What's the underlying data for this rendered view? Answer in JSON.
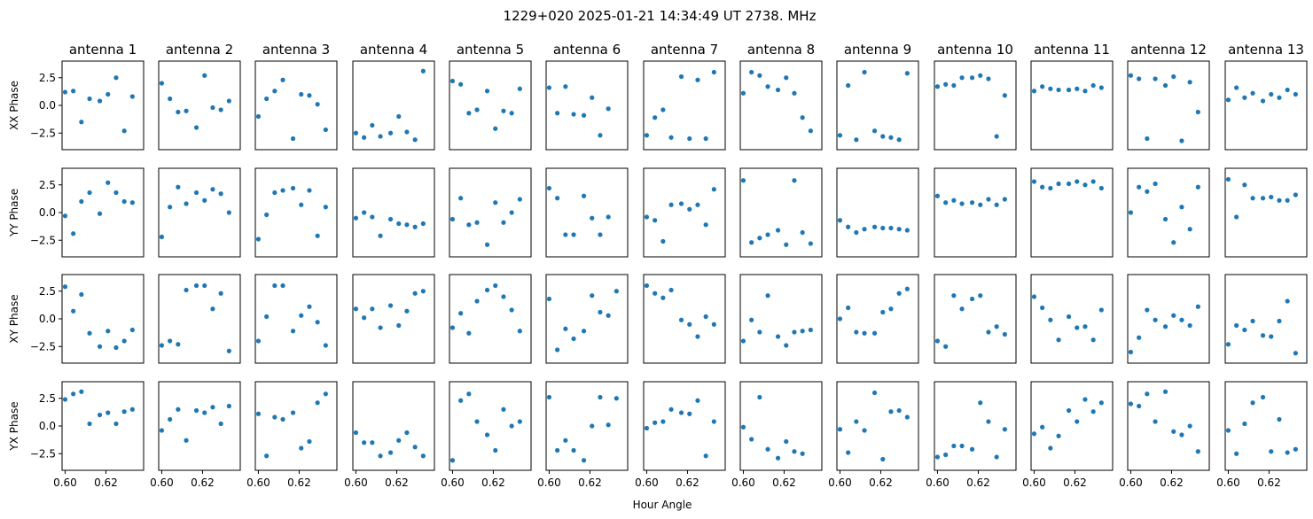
{
  "chart_data": {
    "type": "scatter",
    "title": "1229+020  2025-01-21 14:34:49 UT  2738. MHz",
    "xlabel": "Hour Angle",
    "columns": [
      "antenna 1",
      "antenna 2",
      "antenna 3",
      "antenna 4",
      "antenna 5",
      "antenna 6",
      "antenna 7",
      "antenna 8",
      "antenna 9",
      "antenna 10",
      "antenna 11",
      "antenna 12",
      "antenna 13"
    ],
    "rows": [
      "XX Phase",
      "YY Phase",
      "XY Phase",
      "YX Phase"
    ],
    "xlim": [
      0.5985,
      0.6385
    ],
    "ylim": [
      -4.0,
      4.0
    ],
    "xticks": [
      0.6,
      0.62
    ],
    "xtick_labels": [
      "0.60",
      "0.62"
    ],
    "yticks": [
      2.5,
      0.0,
      -2.5
    ],
    "ytick_labels": [
      "2.5",
      "0.0",
      "−2.5"
    ],
    "x": [
      0.6,
      0.604,
      0.608,
      0.612,
      0.617,
      0.621,
      0.625,
      0.629,
      0.633,
      0.637
    ],
    "values": [
      [
        [
          1.2,
          1.3,
          -1.5,
          0.6,
          0.4,
          1.0,
          2.5,
          -2.3,
          0.8,
          null
        ],
        [
          2.0,
          0.6,
          -0.6,
          -0.5,
          -2.0,
          2.7,
          -0.2,
          -0.4,
          0.4,
          null
        ],
        [
          -1.0,
          0.6,
          1.3,
          2.3,
          -3.0,
          1.0,
          0.9,
          0.1,
          -2.2,
          null
        ],
        [
          -2.5,
          -2.9,
          -1.8,
          -2.8,
          -2.5,
          -1.0,
          -2.4,
          -3.1,
          3.1,
          null
        ],
        [
          2.2,
          1.9,
          -0.7,
          -0.4,
          1.3,
          -2.1,
          -0.5,
          -0.7,
          1.5,
          null
        ],
        [
          1.6,
          -0.7,
          1.7,
          -0.8,
          -0.9,
          0.7,
          -2.7,
          -0.3,
          null,
          null
        ],
        [
          -2.7,
          -1.1,
          -0.4,
          -2.9,
          2.6,
          -3.0,
          2.3,
          -3.0,
          3.0,
          null
        ],
        [
          1.1,
          3.0,
          2.7,
          1.7,
          1.4,
          2.5,
          1.1,
          -1.1,
          -2.3,
          null
        ],
        [
          -2.7,
          1.8,
          -3.1,
          3.0,
          -2.3,
          -2.8,
          -2.9,
          -3.1,
          2.9,
          null
        ],
        [
          1.7,
          1.9,
          1.8,
          2.5,
          2.5,
          2.7,
          2.4,
          -2.8,
          0.9,
          null
        ],
        [
          1.3,
          1.7,
          1.5,
          1.4,
          1.4,
          1.5,
          1.3,
          1.8,
          1.6,
          null
        ],
        [
          2.7,
          2.4,
          -3.0,
          2.4,
          1.8,
          2.6,
          -3.2,
          2.1,
          -0.6,
          null
        ],
        [
          0.5,
          1.6,
          0.7,
          1.1,
          0.4,
          1.0,
          0.7,
          1.4,
          1.0,
          null
        ]
      ],
      [
        [
          -0.3,
          -1.9,
          1.0,
          1.8,
          -0.1,
          2.7,
          1.8,
          1.0,
          0.9,
          null
        ],
        [
          -2.2,
          0.5,
          2.3,
          0.8,
          1.8,
          1.1,
          2.1,
          1.7,
          0.0,
          null
        ],
        [
          -2.4,
          -0.2,
          1.8,
          2.0,
          2.2,
          0.7,
          2.0,
          -2.1,
          0.5,
          null
        ],
        [
          -0.5,
          0.0,
          -0.4,
          -2.1,
          -0.6,
          -1.0,
          -1.1,
          -1.3,
          -1.0,
          null
        ],
        [
          -0.6,
          1.3,
          -1.1,
          -0.9,
          -2.9,
          0.9,
          -0.9,
          0.0,
          1.2,
          null
        ],
        [
          2.2,
          1.3,
          -2.0,
          -2.0,
          1.5,
          -0.5,
          -2.0,
          -0.4,
          null,
          null
        ],
        [
          -0.4,
          -0.7,
          -2.6,
          0.7,
          0.8,
          0.3,
          0.7,
          -1.1,
          2.1,
          null
        ],
        [
          2.9,
          -2.7,
          -2.3,
          -2.0,
          -1.6,
          -2.9,
          2.9,
          -1.8,
          -2.8,
          null
        ],
        [
          -0.7,
          -1.3,
          -1.8,
          -1.5,
          -1.3,
          -1.4,
          -1.4,
          -1.5,
          -1.6,
          null
        ],
        [
          1.5,
          0.9,
          1.1,
          0.8,
          0.9,
          0.7,
          1.2,
          0.7,
          1.2,
          null
        ],
        [
          2.8,
          2.3,
          2.2,
          2.6,
          2.6,
          2.8,
          2.5,
          2.8,
          2.2,
          null
        ],
        [
          0.0,
          2.3,
          1.9,
          2.6,
          -0.6,
          -2.7,
          0.5,
          -1.5,
          2.3,
          null
        ],
        [
          3.0,
          -0.4,
          2.5,
          1.3,
          1.3,
          1.4,
          1.1,
          1.1,
          1.6,
          null
        ]
      ],
      [
        [
          2.9,
          0.7,
          2.2,
          -1.3,
          -2.5,
          -1.1,
          -2.6,
          -2.0,
          -1.0,
          null
        ],
        [
          -2.4,
          -2.0,
          -2.3,
          2.6,
          3.0,
          3.0,
          0.9,
          2.3,
          -2.9,
          null
        ],
        [
          -2.0,
          0.2,
          3.0,
          3.0,
          -1.1,
          0.3,
          1.1,
          -0.3,
          -2.4,
          null
        ],
        [
          0.9,
          0.1,
          0.9,
          -0.8,
          1.2,
          -0.6,
          0.7,
          2.3,
          2.5,
          null
        ],
        [
          -0.8,
          0.5,
          -1.3,
          1.6,
          2.6,
          3.0,
          2.0,
          0.8,
          -1.1,
          null
        ],
        [
          1.8,
          -2.8,
          -0.9,
          -1.8,
          -1.1,
          2.1,
          0.6,
          0.3,
          2.5,
          null
        ],
        [
          3.0,
          2.3,
          1.9,
          2.6,
          -0.1,
          -0.5,
          -1.6,
          0.2,
          -0.5,
          null
        ],
        [
          -2.0,
          -0.1,
          -1.2,
          2.1,
          -1.6,
          -2.4,
          -1.2,
          -1.1,
          -1.0,
          null
        ],
        [
          0.0,
          1.0,
          -1.2,
          -1.3,
          -1.3,
          0.6,
          0.9,
          2.3,
          2.7,
          null
        ],
        [
          -2.0,
          -2.5,
          2.1,
          0.9,
          1.8,
          2.1,
          -1.2,
          -0.7,
          -1.4,
          null
        ],
        [
          2.0,
          1.0,
          -0.1,
          -1.9,
          0.2,
          -0.8,
          -0.7,
          -1.9,
          0.8,
          null
        ],
        [
          -3.0,
          -1.7,
          0.8,
          -0.1,
          -0.7,
          0.3,
          -0.1,
          -0.6,
          1.1,
          null
        ],
        [
          -2.3,
          -0.6,
          -1.0,
          -0.2,
          -1.5,
          -1.6,
          -0.2,
          1.6,
          -3.1,
          null
        ]
      ],
      [
        [
          2.4,
          2.9,
          3.1,
          0.2,
          1.0,
          1.2,
          0.2,
          1.3,
          1.5,
          null
        ],
        [
          -0.4,
          0.6,
          1.5,
          -1.3,
          1.4,
          1.2,
          1.7,
          0.2,
          1.8,
          null
        ],
        [
          1.1,
          -2.7,
          0.8,
          0.6,
          1.2,
          -2.0,
          -1.4,
          2.1,
          2.9,
          null
        ],
        [
          -0.6,
          -1.5,
          -1.5,
          -2.7,
          -2.4,
          -1.3,
          -0.6,
          -1.9,
          -2.7,
          null
        ],
        [
          -3.1,
          2.3,
          2.9,
          0.4,
          -0.8,
          -2.2,
          1.5,
          0.0,
          0.4,
          null
        ],
        [
          2.6,
          -2.2,
          -1.3,
          -2.2,
          -3.1,
          0.0,
          2.6,
          0.1,
          2.5,
          null
        ],
        [
          -0.2,
          0.3,
          0.4,
          1.5,
          1.2,
          1.1,
          2.3,
          -2.7,
          0.4,
          null
        ],
        [
          -0.1,
          -1.2,
          2.6,
          -2.1,
          -2.9,
          -1.4,
          -2.3,
          -2.5,
          null,
          null
        ],
        [
          -0.3,
          -2.4,
          0.4,
          -0.4,
          3.0,
          -3.0,
          1.3,
          1.4,
          0.8,
          null
        ],
        [
          -2.8,
          -2.6,
          -1.8,
          -1.8,
          -2.1,
          2.1,
          0.4,
          -2.8,
          -0.3,
          null
        ],
        [
          -0.7,
          -0.1,
          -2.0,
          -0.9,
          1.4,
          0.4,
          2.4,
          1.3,
          2.1,
          null
        ],
        [
          2.0,
          1.8,
          2.9,
          0.4,
          3.1,
          -0.5,
          -0.8,
          0.0,
          -2.3,
          null
        ],
        [
          -0.4,
          -2.5,
          0.2,
          2.1,
          2.6,
          -2.3,
          0.6,
          -2.4,
          -2.1,
          null
        ]
      ]
    ]
  }
}
